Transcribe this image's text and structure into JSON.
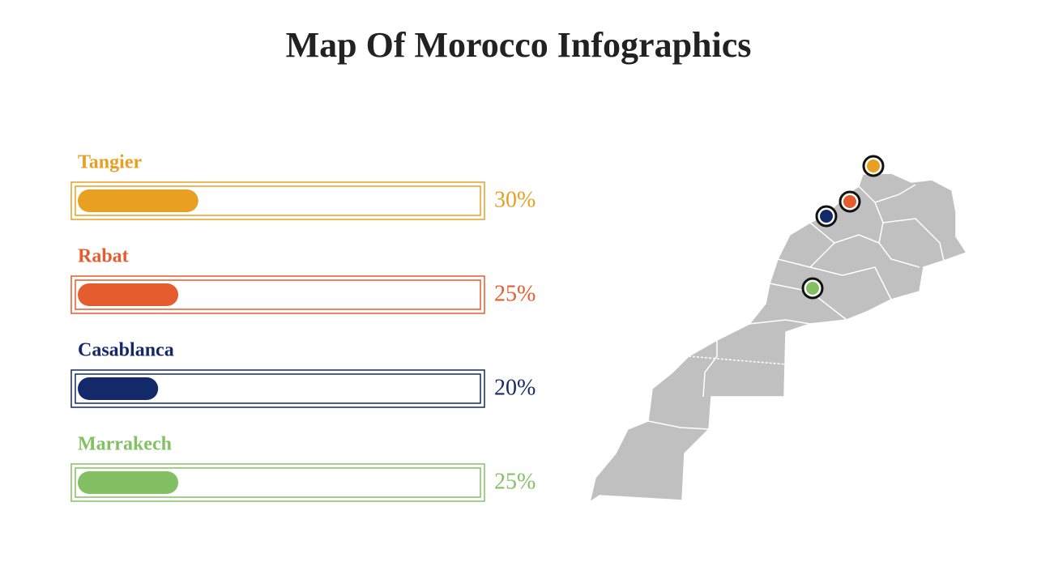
{
  "chart_data": {
    "type": "bar",
    "orientation": "horizontal",
    "title": "Map Of Morocco Infographics",
    "categories": [
      "Tangier",
      "Rabat",
      "Casablanca",
      "Marrakech"
    ],
    "values": [
      30,
      25,
      20,
      25
    ],
    "value_labels": [
      "30%",
      "25%",
      "20%",
      "25%"
    ],
    "colors": [
      "#e89f22",
      "#e55c2f",
      "#14296a",
      "#83c064"
    ],
    "xlim": [
      0,
      100
    ]
  }
}
